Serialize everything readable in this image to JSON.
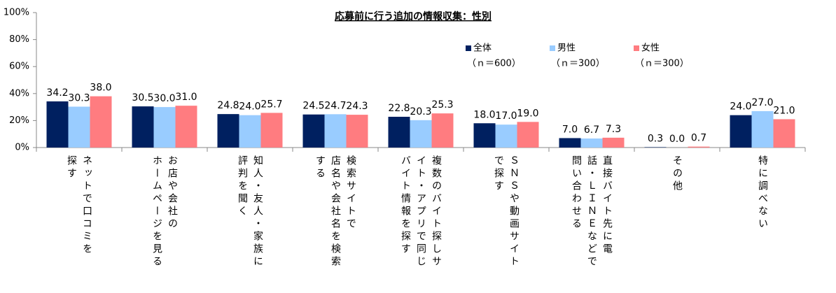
{
  "chart_data": {
    "type": "bar",
    "title": "応募前に行う追加の情報収集：性別",
    "categories": [
      "ネットで口コミを\n探す",
      "お店や会社の\nホームページを見る",
      "知人・友人・家族に\n評判を聞く",
      "検索サイトで\n店名や会社名を検索\nする",
      "複数のバイト探しサ\nイト・アプリで同じ\nバイト情報を探す",
      "ＳＮＳや動画サイト\nで探す",
      "直接バイト先に電\n話・ＬＩＮＥなどで\n問い合わせる",
      "その他",
      "特に調べない"
    ],
    "series": [
      {
        "name": "全体",
        "sample_size": "（ｎ＝600）",
        "color": "#002060",
        "values": [
          34.2,
          30.5,
          24.8,
          24.5,
          22.8,
          18.0,
          7.0,
          0.3,
          24.0
        ],
        "value_labels": [
          "34.2",
          "30.5",
          "24.8",
          "24.5",
          "22.8",
          "18.0",
          "7.0",
          "0.3",
          "24.0"
        ]
      },
      {
        "name": "男性",
        "sample_size": "（ｎ＝300）",
        "color": "#99ccff",
        "values": [
          30.3,
          30.0,
          24.0,
          24.7,
          20.3,
          17.0,
          6.7,
          0.0,
          27.0
        ],
        "value_labels": [
          "30.3",
          "30.0",
          "24.0",
          "24.7",
          "20.3",
          "17.0",
          "6.7",
          "0.0",
          "27.0"
        ]
      },
      {
        "name": "女性",
        "sample_size": "（ｎ＝300）",
        "color": "#ff7c80",
        "values": [
          38.0,
          31.0,
          25.7,
          24.3,
          25.3,
          19.0,
          7.3,
          0.7,
          21.0
        ],
        "value_labels": [
          "38.0",
          "31.0",
          "25.7",
          "24.3",
          "25.3",
          "19.0",
          "7.3",
          "0.7",
          "21.0"
        ]
      }
    ],
    "ylim": [
      0,
      100
    ],
    "yticks": [
      {
        "value": 0,
        "label": "0%"
      },
      {
        "value": 20,
        "label": "20%"
      },
      {
        "value": 40,
        "label": "40%"
      },
      {
        "value": 60,
        "label": "60%"
      },
      {
        "value": 80,
        "label": "80%"
      },
      {
        "value": 100,
        "label": "100%"
      }
    ],
    "legend": "top-right"
  }
}
